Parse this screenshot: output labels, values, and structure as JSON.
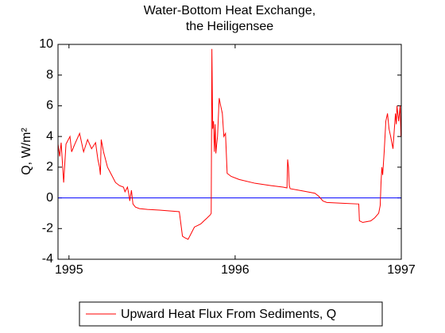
{
  "chart_data": {
    "type": "line",
    "title": [
      "Water-Bottom Heat Exchange,",
      "the Heiligensee"
    ],
    "ylabel": "Q, W/m²",
    "x": [
      1994.934,
      1994.944,
      1994.953,
      1994.968,
      1994.982,
      1995.006,
      1995.016,
      1995.035,
      1995.064,
      1995.088,
      1995.112,
      1995.136,
      1995.16,
      1995.174,
      1995.184,
      1995.189,
      1995.194,
      1995.208,
      1995.232,
      1995.256,
      1995.28,
      1995.304,
      1995.328,
      1995.337,
      1995.352,
      1995.361,
      1995.366,
      1995.376,
      1995.385,
      1995.4,
      1995.424,
      1995.472,
      1995.544,
      1995.664,
      1995.683,
      1995.698,
      1995.717,
      1995.736,
      1995.755,
      1995.774,
      1995.793,
      1995.812,
      1995.832,
      1995.851,
      1995.856,
      1995.86,
      1995.865,
      1995.87,
      1995.875,
      1995.88,
      1995.884,
      1995.889,
      1995.894,
      1995.904,
      1995.913,
      1995.923,
      1995.932,
      1995.942,
      1995.952,
      1995.976,
      1996.024,
      1996.12,
      1996.216,
      1996.288,
      1996.312,
      1996.316,
      1996.321,
      1996.326,
      1996.331,
      1996.408,
      1996.48,
      1996.504,
      1996.528,
      1996.552,
      1996.648,
      1996.744,
      1996.748,
      1996.768,
      1996.816,
      1996.84,
      1996.864,
      1996.873,
      1996.878,
      1996.883,
      1996.888,
      1996.897,
      1996.907,
      1996.917,
      1996.926,
      1996.936,
      1996.95,
      1996.955,
      1996.965,
      1996.97,
      1996.974,
      1996.984,
      1996.993,
      1996.998
    ],
    "series": [
      {
        "name": "Upward Heat Flux From Sediments, Q",
        "color": "#ff0000",
        "values": [
          3.5,
          2.7,
          3.6,
          1.0,
          3.5,
          4.0,
          3.0,
          3.5,
          4.2,
          3.0,
          3.8,
          3.2,
          3.6,
          2.5,
          2.0,
          1.5,
          3.8,
          3.0,
          2.0,
          1.5,
          1.0,
          0.8,
          0.7,
          0.4,
          0.7,
          0.2,
          -0.2,
          0.5,
          -0.4,
          -0.6,
          -0.7,
          -0.75,
          -0.8,
          -0.9,
          -2.5,
          -2.6,
          -2.7,
          -2.3,
          -1.9,
          -1.8,
          -1.7,
          -1.5,
          -1.3,
          -1.1,
          -1.0,
          9.7,
          4.5,
          5.0,
          3.0,
          4.8,
          2.9,
          3.5,
          4.0,
          6.5,
          6.0,
          5.5,
          4.0,
          4.2,
          1.6,
          1.4,
          1.2,
          0.95,
          0.8,
          0.7,
          0.65,
          2.5,
          2.0,
          0.8,
          0.6,
          0.45,
          0.3,
          0.1,
          -0.2,
          -0.3,
          -0.35,
          -0.4,
          -1.5,
          -1.6,
          -1.5,
          -1.3,
          -1.0,
          -0.5,
          1.0,
          2.0,
          1.5,
          3.0,
          5.0,
          5.5,
          4.5,
          4.0,
          3.2,
          4.0,
          5.5,
          4.8,
          6.0,
          5.0,
          6.0,
          4.0
        ]
      }
    ],
    "reference_line": {
      "value": 0,
      "color": "#0000ff"
    },
    "xlim": [
      1994.934,
      1997
    ],
    "xticks": [
      1995,
      1996,
      1997
    ],
    "ylim": [
      -4,
      10
    ],
    "yticks": [
      -4,
      -2,
      0,
      2,
      4,
      6,
      8,
      10
    ],
    "legend": "bottom"
  }
}
